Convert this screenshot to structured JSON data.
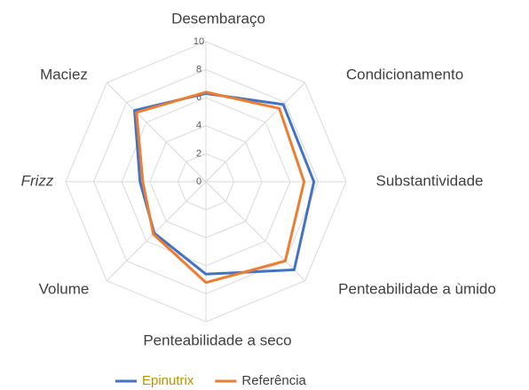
{
  "chart_data": {
    "type": "radar",
    "categories": [
      "Desembaraço",
      "Condicionamento",
      "Substantividade",
      "Penteabilidade a ùmido",
      "Penteabilidade a seco",
      "Volume",
      "Frizz",
      "Maciez"
    ],
    "series": [
      {
        "name": "Epinutrix",
        "color": "#4472c4",
        "values": [
          6.3,
          7.8,
          7.7,
          8.9,
          6.6,
          5.2,
          4.7,
          7.2
        ]
      },
      {
        "name": "Referência",
        "color": "#ed7d31",
        "values": [
          6.4,
          7.4,
          7.0,
          8.0,
          7.2,
          5.3,
          4.5,
          7.0
        ]
      }
    ],
    "rlim": [
      0,
      10
    ],
    "rticks": [
      0,
      2,
      4,
      6,
      8,
      10
    ],
    "grid": true,
    "legend": "bottom"
  }
}
